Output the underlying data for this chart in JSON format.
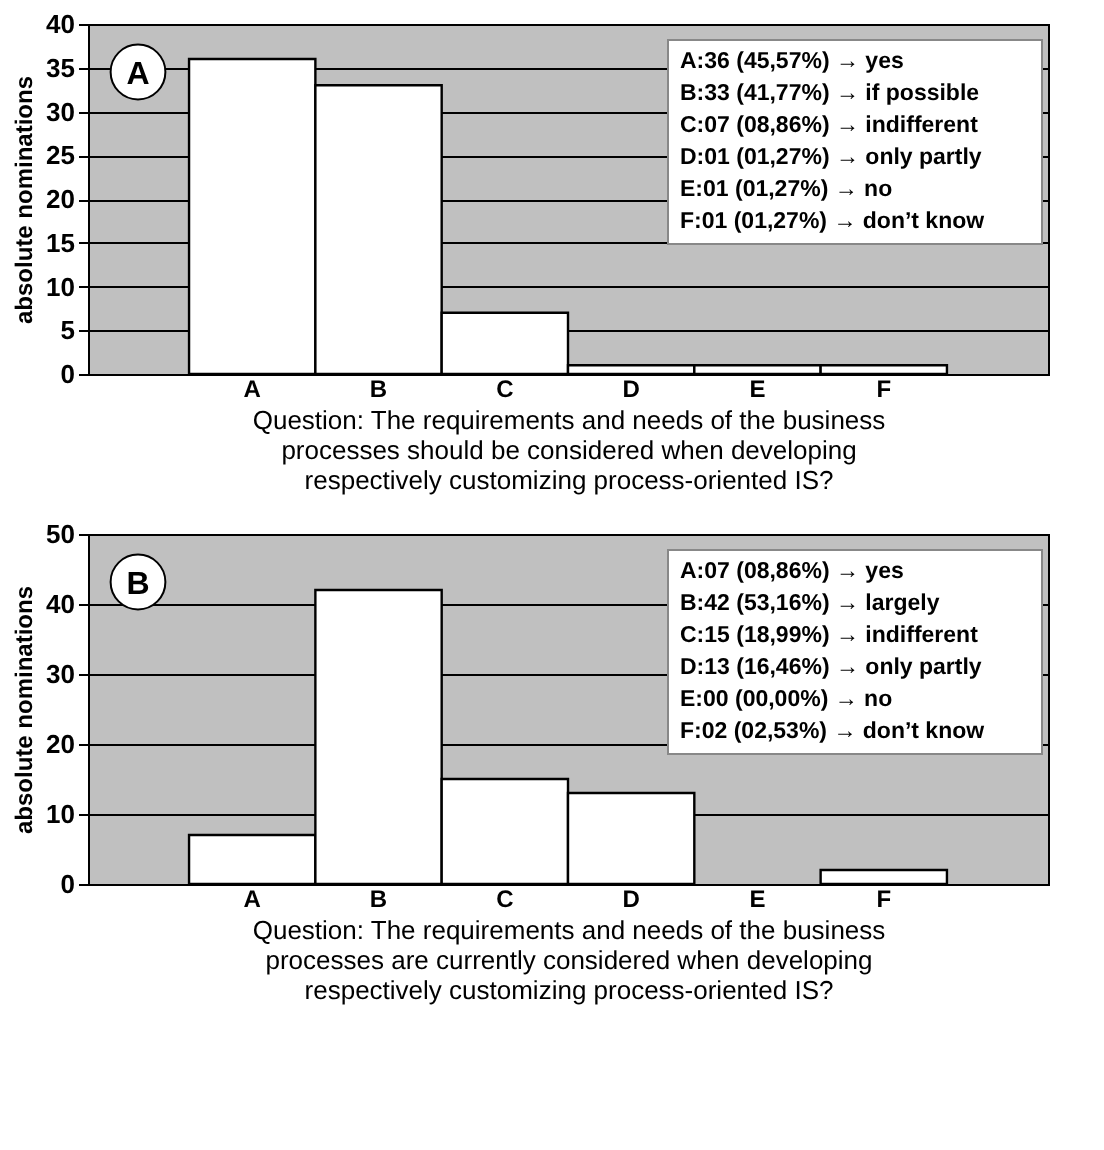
{
  "chart_data": [
    {
      "type": "bar",
      "categories": [
        "A",
        "B",
        "C",
        "D",
        "E",
        "F"
      ],
      "values": [
        36,
        33,
        7,
        1,
        1,
        1
      ],
      "color": "#ffffff",
      "ylim": [
        0,
        40
      ],
      "yticks": [
        0,
        5,
        10,
        15,
        20,
        25,
        30,
        35,
        40
      ],
      "grid": "y",
      "ylabel": "absolute nominations",
      "xlabel": "Question: The requirements and needs of the business processes should be considered when developing respectively customizing process-oriented IS?",
      "annotations": [
        "A",
        "A:36  (45,57%) → yes",
        "B:33  (41,77%) → if possible",
        "C:07  (08,86%) → indifferent",
        "D:01  (01,27%) → only partly",
        "E:01  (01,27%) → no",
        "F:01  (01,27%) → don’t know"
      ]
    },
    {
      "type": "bar",
      "categories": [
        "A",
        "B",
        "C",
        "D",
        "E",
        "F"
      ],
      "values": [
        7,
        42,
        15,
        13,
        0,
        2
      ],
      "color": "#ffffff",
      "ylim": [
        0,
        50
      ],
      "yticks": [
        0,
        10,
        20,
        30,
        40,
        50
      ],
      "grid": "y",
      "ylabel": "absolute nominations",
      "xlabel": "Question: The requirements and needs of the business processes are currently considered when developing respectively customizing process-oriented IS?",
      "annotations": [
        "B",
        "A:07  (08,86%) → yes",
        "B:42  (53,16%) → largely",
        "C:15  (18,99%) → indifferent",
        "D:13  (16,46%) → only partly",
        "E:00  (00,00%) → no",
        "F:02  (02,53%) → don’t know"
      ]
    }
  ]
}
